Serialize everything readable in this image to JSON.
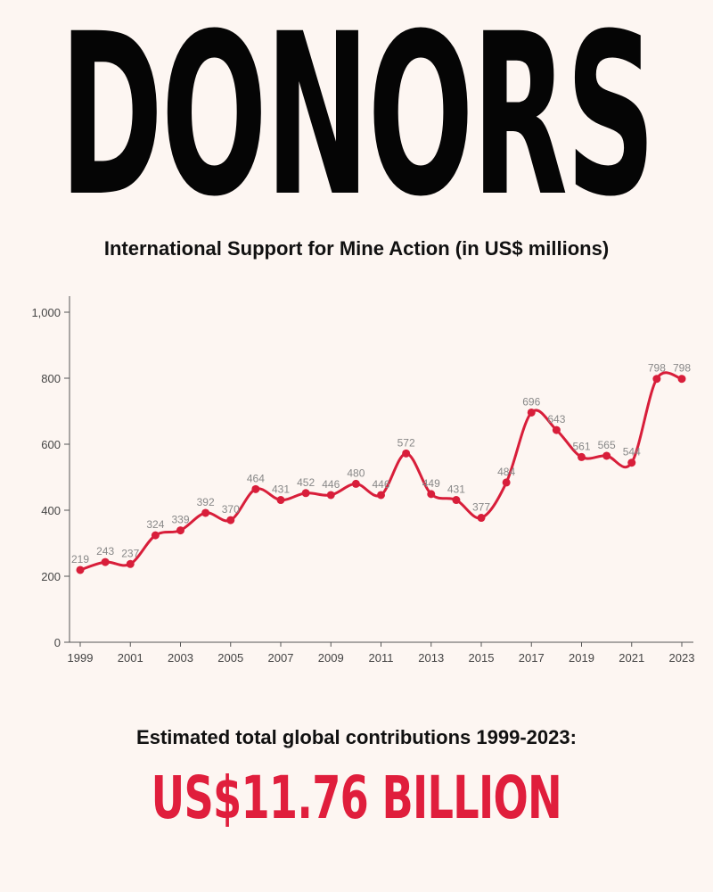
{
  "headline": "DONORS",
  "chart_title": "International Support for Mine Action (in US$ millions)",
  "total_label": "Estimated total global contributions 1999-2023:",
  "total_value": "US$11.76 BILLION",
  "colors": {
    "line": "#d81e3a",
    "accent": "#e01e3c",
    "axis": "#555555",
    "label": "#888888"
  },
  "chart_data": {
    "type": "line",
    "title": "International Support for Mine Action (in US$ millions)",
    "xlabel": "",
    "ylabel": "",
    "x": [
      1999,
      2000,
      2001,
      2002,
      2003,
      2004,
      2005,
      2006,
      2007,
      2008,
      2009,
      2010,
      2011,
      2012,
      2013,
      2014,
      2015,
      2016,
      2017,
      2018,
      2019,
      2020,
      2021,
      2022,
      2023
    ],
    "values": [
      219,
      243,
      237,
      324,
      339,
      392,
      370,
      464,
      431,
      452,
      446,
      480,
      446,
      572,
      449,
      431,
      377,
      484,
      696,
      643,
      561,
      565,
      544,
      798,
      798
    ],
    "data_labels": [
      "219",
      "243",
      "237",
      "324",
      "339",
      "392",
      "370",
      "464",
      "431",
      "452",
      "446",
      "480",
      "446",
      "572",
      "449",
      "431",
      "377",
      "484",
      "696",
      "643",
      "561",
      "565",
      "544",
      "798",
      "798"
    ],
    "x_ticks": [
      "1999",
      "2001",
      "2003",
      "2005",
      "2007",
      "2009",
      "2011",
      "2013",
      "2015",
      "2017",
      "2019",
      "2021",
      "2023"
    ],
    "y_ticks": [
      "0",
      "200",
      "400",
      "600",
      "800",
      "1,000"
    ],
    "y_tick_values": [
      0,
      200,
      400,
      600,
      800,
      1000
    ],
    "ylim": [
      0,
      1000
    ],
    "grid": false,
    "legend": "none"
  }
}
